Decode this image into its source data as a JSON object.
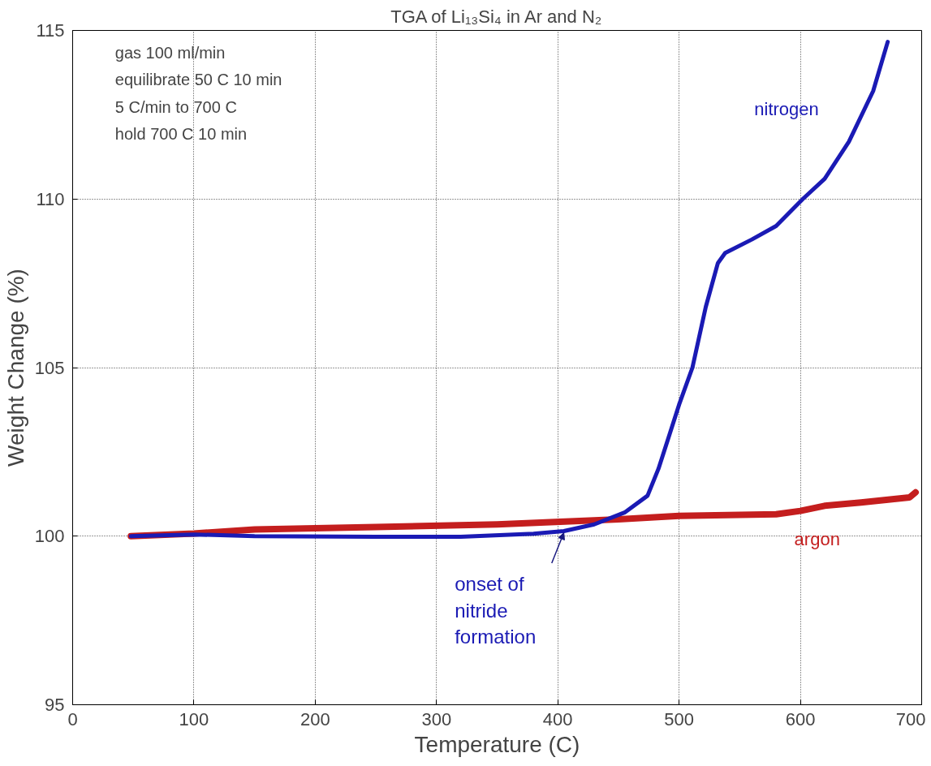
{
  "chart_data": {
    "type": "line",
    "title": "TGA of Li₁₃Si₄ in Ar and N₂",
    "xlabel": "Temperature (C)",
    "ylabel": "Weight Change (%)",
    "xlim": [
      0,
      700
    ],
    "ylim": [
      95,
      115
    ],
    "xticks": [
      0,
      100,
      200,
      300,
      400,
      500,
      600,
      700
    ],
    "yticks": [
      95,
      100,
      105,
      110,
      115
    ],
    "grid": true,
    "line_style": "solid",
    "marker": "none",
    "series": [
      {
        "name": "nitrogen",
        "color": "#1a1ab4",
        "x": [
          48,
          100,
          150,
          250,
          320,
          380,
          405,
          430,
          455,
          474,
          483,
          492,
          500,
          511,
          522,
          532,
          538,
          560,
          580,
          602,
          620,
          640,
          660,
          672
        ],
        "values": [
          100.0,
          100.05,
          100.0,
          99.98,
          99.98,
          100.07,
          100.15,
          100.35,
          100.7,
          101.2,
          102.0,
          103.0,
          103.9,
          105.0,
          106.8,
          108.1,
          108.4,
          108.8,
          109.2,
          110.0,
          110.6,
          111.7,
          113.2,
          114.66
        ]
      },
      {
        "name": "argon",
        "color": "#c41e1e",
        "x": [
          48,
          100,
          150,
          250,
          350,
          450,
          500,
          580,
          600,
          620,
          650,
          690,
          695
        ],
        "values": [
          100.0,
          100.08,
          100.2,
          100.27,
          100.35,
          100.5,
          100.6,
          100.65,
          100.75,
          100.9,
          101.0,
          101.15,
          101.3
        ]
      }
    ],
    "annotations": [
      "gas 100 ml/min",
      "equilibrate 50 C 10 min",
      "5 C/min to 700 C",
      "hold 700 C 10 min",
      {
        "text": "onset of nitride formation",
        "x": 405,
        "y": 100.1
      }
    ]
  }
}
